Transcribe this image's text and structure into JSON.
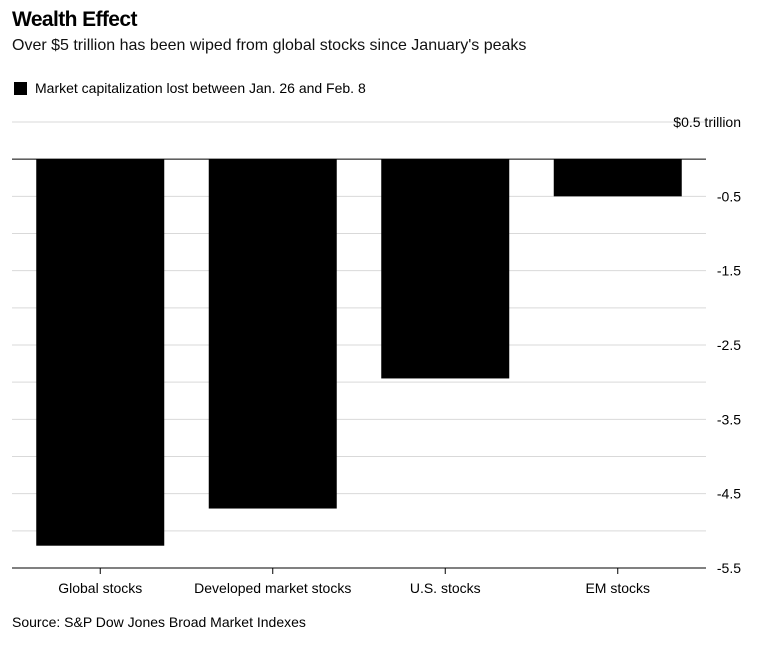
{
  "header": {
    "title": "Wealth Effect",
    "subtitle": "Over $5 trillion has been wiped from global stocks since January's peaks"
  },
  "legend": {
    "label": "Market capitalization lost between Jan. 26 and Feb. 8",
    "color": "#000000"
  },
  "footer": {
    "source": "Source: S&P Dow Jones Broad Market Indexes"
  },
  "chart_data": {
    "type": "bar",
    "categories": [
      "Global stocks",
      "Developed market stocks",
      "U.S. stocks",
      "EM stocks"
    ],
    "series": [
      {
        "name": "Market capitalization lost between Jan. 26 and Feb. 8",
        "values": [
          -5.2,
          -4.7,
          -2.95,
          -0.5
        ]
      }
    ],
    "ylim": [
      -5.5,
      0.5
    ],
    "y_ticks": [
      0.5,
      -0.5,
      -1.5,
      -2.5,
      -3.5,
      -4.5,
      -5.5
    ],
    "y_tick_labels": [
      "$0.5 trillion",
      "-0.5",
      "-1.5",
      "-2.5",
      "-3.5",
      "-4.5",
      "-5.5"
    ],
    "grid": true,
    "axis_position": "right",
    "bar_color": "#000000"
  }
}
